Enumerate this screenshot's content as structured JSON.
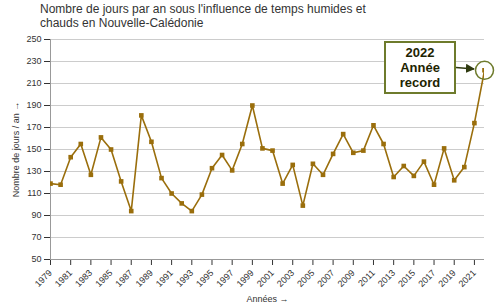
{
  "chart_data": {
    "type": "line",
    "title": "Nombre de jours par an sous l'influence de temps humides et chauds en Nouvelle-Calédonie",
    "xlabel": "Années",
    "ylabel": "Nombre de jours / an",
    "x": [
      1979,
      1980,
      1981,
      1982,
      1983,
      1984,
      1985,
      1986,
      1987,
      1988,
      1989,
      1990,
      1991,
      1992,
      1993,
      1994,
      1995,
      1996,
      1997,
      1998,
      1999,
      2000,
      2001,
      2002,
      2003,
      2004,
      2005,
      2006,
      2007,
      2008,
      2009,
      2010,
      2011,
      2012,
      2013,
      2014,
      2015,
      2016,
      2017,
      2018,
      2019,
      2020,
      2021,
      2022
    ],
    "values": [
      119,
      118,
      143,
      155,
      127,
      161,
      150,
      121,
      94,
      181,
      157,
      124,
      110,
      101,
      94,
      109,
      133,
      145,
      131,
      155,
      190,
      151,
      149,
      119,
      136,
      99,
      137,
      127,
      146,
      164,
      147,
      149,
      172,
      155,
      125,
      135,
      126,
      139,
      118,
      151,
      122,
      134,
      174,
      222
    ],
    "color": "#9a6e0c",
    "marker": "square",
    "xlim": [
      1979,
      2022
    ],
    "xticks": [
      1979,
      1981,
      1983,
      1985,
      1987,
      1989,
      1991,
      1993,
      1995,
      1997,
      1999,
      2001,
      2003,
      2005,
      2007,
      2009,
      2011,
      2013,
      2015,
      2017,
      2019,
      2021
    ],
    "ylim": [
      50,
      250
    ],
    "yticks": [
      50,
      70,
      90,
      110,
      130,
      150,
      170,
      190,
      210,
      230,
      250
    ],
    "grid": true,
    "annotation": {
      "text": [
        "2022",
        "Année",
        "record"
      ],
      "x": 2022,
      "y": 222
    }
  }
}
